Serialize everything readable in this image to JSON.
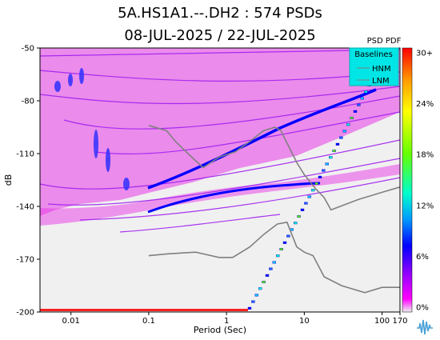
{
  "header": {
    "title_line1": "5A.HS1A1.--.DH2 : 574 PSDs",
    "title_line2": "08-JUL-2025 / 22-JUL-2025"
  },
  "chart_data": {
    "type": "heatmap",
    "title": "5A.HS1A1.--.DH2 : 574 PSDs",
    "subtitle": "08-JUL-2025 / 22-JUL-2025",
    "xlabel": "Period (Sec)",
    "ylabel": "dB",
    "x_scale": "log",
    "xlim": [
      0.004,
      170
    ],
    "ylim": [
      -200,
      -50
    ],
    "x_ticks": [
      {
        "value": 0.01,
        "label": "0.01"
      },
      {
        "value": 0.1,
        "label": "0.1"
      },
      {
        "value": 1,
        "label": "1"
      },
      {
        "value": 10,
        "label": "10"
      },
      {
        "value": 100,
        "label": "100"
      },
      {
        "value": 170,
        "label": "170"
      }
    ],
    "y_ticks": [
      {
        "value": -50,
        "label": "-50"
      },
      {
        "value": -80,
        "label": "-80"
      },
      {
        "value": -110,
        "label": "-110"
      },
      {
        "value": -140,
        "label": "-140"
      },
      {
        "value": -170,
        "label": "-170"
      },
      {
        "value": -200,
        "label": "-200"
      }
    ],
    "colorbar": {
      "title": "PSD PDF",
      "labels": [
        "30+",
        "24%",
        "18%",
        "12%",
        "6%",
        "0%"
      ],
      "colors": [
        "#ff0000",
        "#ff9900",
        "#ffff00",
        "#66ff00",
        "#00ffcc",
        "#0099ff",
        "#0000ff",
        "#9900ff",
        "#ff00ff",
        "#f0f0f0"
      ]
    },
    "legend": {
      "title": "Baselines",
      "position": "top-right",
      "entries": [
        "HNM",
        "LNM"
      ]
    },
    "series": [
      {
        "name": "HNM",
        "color": "#808080",
        "points": [
          [
            0.1,
            -94
          ],
          [
            0.17,
            -97
          ],
          [
            0.22,
            -103
          ],
          [
            0.32,
            -110
          ],
          [
            0.5,
            -118
          ],
          [
            0.8,
            -112
          ],
          [
            1.3,
            -109
          ],
          [
            2,
            -103
          ],
          [
            3,
            -97
          ],
          [
            4.2,
            -95
          ],
          [
            5,
            -97
          ],
          [
            6,
            -104
          ],
          [
            8,
            -115
          ],
          [
            10,
            -122
          ],
          [
            14,
            -130
          ],
          [
            18,
            -135
          ],
          [
            22,
            -142
          ],
          [
            50,
            -136
          ],
          [
            100,
            -132
          ],
          [
            170,
            -129
          ]
        ]
      },
      {
        "name": "LNM",
        "color": "#808080",
        "points": [
          [
            0.1,
            -168
          ],
          [
            0.17,
            -167
          ],
          [
            0.4,
            -166
          ],
          [
            0.8,
            -169
          ],
          [
            1.2,
            -169
          ],
          [
            2,
            -163
          ],
          [
            3,
            -156
          ],
          [
            4.5,
            -150
          ],
          [
            6,
            -149
          ],
          [
            8,
            -163
          ],
          [
            10,
            -166
          ],
          [
            13,
            -168
          ],
          [
            18,
            -180
          ],
          [
            30,
            -185
          ],
          [
            60,
            -189
          ],
          [
            100,
            -186
          ],
          [
            170,
            -186
          ]
        ]
      }
    ]
  }
}
